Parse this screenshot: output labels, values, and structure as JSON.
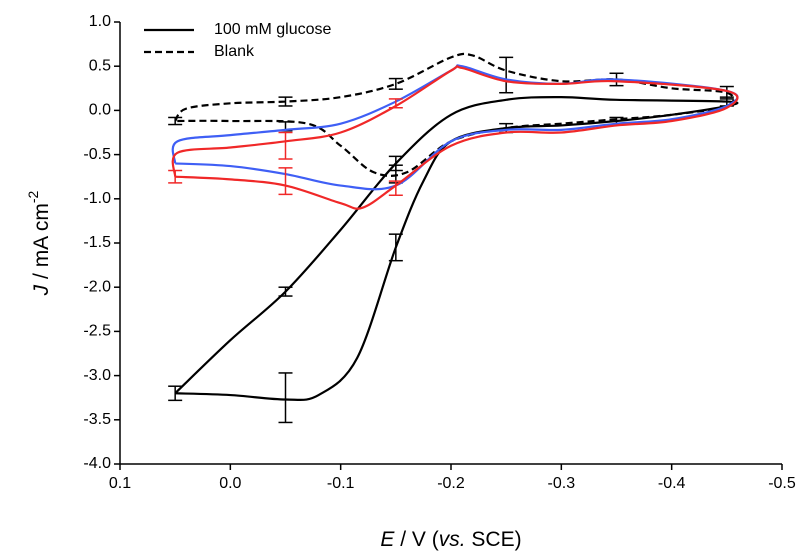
{
  "chart_data": {
    "type": "line",
    "xlabel": [
      "E",
      " / V (",
      "vs.",
      " SCE)"
    ],
    "ylabel": [
      "J",
      " / mA cm",
      "-2"
    ],
    "xlim": [
      0.1,
      -0.5
    ],
    "ylim": [
      -4,
      1
    ],
    "xticks": [
      0.1,
      {
        "value": 0,
        "label": "0.0"
      },
      -0.1,
      -0.2,
      -0.3,
      -0.4,
      -0.5
    ],
    "yticks": [
      {
        "value": 1,
        "label": "1.0"
      },
      0.5,
      {
        "value": 0,
        "label": "0.0"
      },
      -0.5,
      {
        "value": -1,
        "label": "-1.0"
      },
      -1.5,
      {
        "value": -2,
        "label": "-2.0"
      },
      -2.5,
      {
        "value": -3,
        "label": "-3.0"
      },
      -3.5,
      {
        "value": -4,
        "label": "-4.0"
      }
    ],
    "legend": "upper left",
    "series": [
      {
        "name": "100 mM glucose",
        "color": "#000000",
        "dash": "solid",
        "x": [
          0.05,
          0.0,
          -0.05,
          -0.1,
          -0.15,
          -0.2,
          -0.25,
          -0.3,
          -0.35,
          -0.45,
          -0.45,
          -0.4,
          -0.35,
          -0.3,
          -0.25,
          -0.2,
          -0.175,
          -0.15,
          -0.115,
          -0.08,
          -0.05,
          0.0,
          0.05
        ],
        "values": [
          -3.2,
          -2.6,
          -2.05,
          -1.35,
          -0.6,
          -0.05,
          0.12,
          0.15,
          0.12,
          0.1,
          0.05,
          -0.05,
          -0.12,
          -0.17,
          -0.2,
          -0.35,
          -0.8,
          -1.55,
          -2.8,
          -3.22,
          -3.27,
          -3.22,
          -3.2
        ],
        "error_bars": {
          "x": [
            0.05,
            -0.05,
            -0.15,
            -0.15,
            -0.05,
            -0.25,
            -0.35,
            -0.45
          ],
          "y": [
            -3.2,
            -2.05,
            -0.6,
            -1.55,
            -3.25,
            -0.2,
            -0.12,
            0.1
          ],
          "err": [
            0.08,
            0.05,
            0.08,
            0.15,
            0.28,
            0.05,
            0.04,
            0.05
          ]
        }
      },
      {
        "name": "Blank",
        "color": "#000000",
        "dash": "dashed",
        "x": [
          0.05,
          0.04,
          0.0,
          -0.05,
          -0.1,
          -0.15,
          -0.2,
          -0.22,
          -0.25,
          -0.3,
          -0.35,
          -0.4,
          -0.45,
          -0.45,
          -0.4,
          -0.35,
          -0.3,
          -0.25,
          -0.2,
          -0.16,
          -0.13,
          -0.1,
          -0.07,
          0.0,
          0.05
        ],
        "values": [
          -0.12,
          0.02,
          0.08,
          0.1,
          0.15,
          0.3,
          0.6,
          0.62,
          0.45,
          0.33,
          0.35,
          0.25,
          0.2,
          0.05,
          -0.05,
          -0.1,
          -0.15,
          -0.2,
          -0.35,
          -0.7,
          -0.7,
          -0.4,
          -0.15,
          -0.12,
          -0.12
        ],
        "error_bars": {
          "x": [
            0.05,
            -0.05,
            -0.15,
            -0.25,
            -0.35,
            -0.45,
            -0.05,
            -0.15
          ],
          "y": [
            -0.12,
            0.1,
            0.3,
            0.4,
            0.35,
            0.2,
            -0.18,
            -0.72
          ],
          "err": [
            0.04,
            0.05,
            0.06,
            0.2,
            0.07,
            0.07,
            0.05,
            0.1
          ]
        }
      },
      {
        "color": "#3f5ff5",
        "dash": "solid",
        "x": [
          0.05,
          0.048,
          0.0,
          -0.05,
          -0.1,
          -0.15,
          -0.2,
          -0.21,
          -0.25,
          -0.3,
          -0.35,
          -0.45,
          -0.45,
          -0.4,
          -0.35,
          -0.3,
          -0.25,
          -0.2,
          -0.15,
          -0.1,
          -0.05,
          0.0,
          0.05
        ],
        "values": [
          -0.6,
          -0.35,
          -0.28,
          -0.22,
          -0.15,
          0.1,
          0.45,
          0.5,
          0.35,
          0.3,
          0.35,
          0.22,
          0.05,
          -0.1,
          -0.15,
          -0.22,
          -0.22,
          -0.35,
          -0.85,
          -0.85,
          -0.72,
          -0.63,
          -0.6
        ]
      },
      {
        "color": "#f02828",
        "dash": "solid",
        "x": [
          0.05,
          0.048,
          0.0,
          -0.05,
          -0.1,
          -0.15,
          -0.2,
          -0.21,
          -0.25,
          -0.3,
          -0.35,
          -0.45,
          -0.45,
          -0.4,
          -0.35,
          -0.3,
          -0.25,
          -0.2,
          -0.15,
          -0.12,
          -0.1,
          -0.05,
          0.0,
          0.05
        ],
        "values": [
          -0.75,
          -0.48,
          -0.42,
          -0.35,
          -0.25,
          0.05,
          0.45,
          0.48,
          0.33,
          0.3,
          0.33,
          0.22,
          0.03,
          -0.12,
          -0.17,
          -0.25,
          -0.25,
          -0.4,
          -0.85,
          -1.1,
          -1.05,
          -0.85,
          -0.78,
          -0.75
        ],
        "error_bars": {
          "x": [
            0.05,
            -0.05,
            -0.05,
            -0.15,
            -0.15
          ],
          "y": [
            -0.75,
            -0.8,
            -0.4,
            0.08,
            -0.88
          ],
          "err": [
            0.07,
            0.15,
            0.15,
            0.05,
            0.08
          ]
        }
      }
    ]
  }
}
